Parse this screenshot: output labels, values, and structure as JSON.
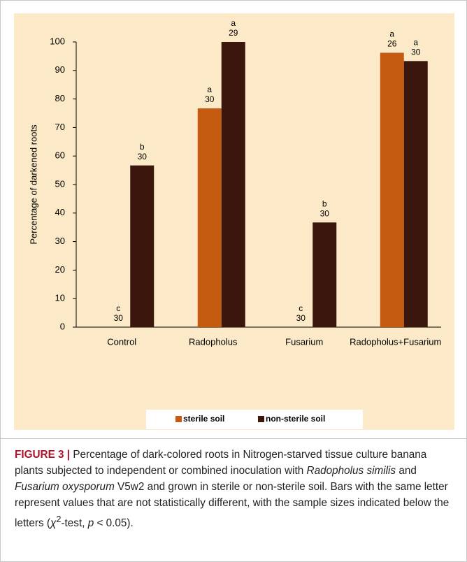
{
  "chart_data": {
    "type": "bar",
    "y_label": "Percentage of darkened roots",
    "categories": [
      "Control",
      "Radopholus",
      "Fusarium",
      "Radopholus+Fusarium"
    ],
    "series": [
      {
        "name": "sterile soil",
        "color": "#c55a11",
        "values": [
          0,
          76.7,
          0,
          96.2
        ],
        "letters": [
          "c",
          "a",
          "c",
          "a"
        ],
        "sample_sizes": [
          30,
          30,
          30,
          26
        ]
      },
      {
        "name": "non-sterile soil",
        "color": "#3a160c",
        "values": [
          56.7,
          100,
          36.7,
          93.3
        ],
        "letters": [
          "b",
          "a",
          "b",
          "a"
        ],
        "sample_sizes": [
          30,
          29,
          30,
          30
        ]
      }
    ],
    "ylim": [
      0,
      100
    ],
    "yticks": [
      0,
      10,
      20,
      30,
      40,
      50,
      60,
      70,
      80,
      90,
      100
    ],
    "background": "#fbe9c8",
    "legend": "bottom"
  },
  "caption": [
    "FIGURE 3 |",
    " Percentage of dark-colored roots in Nitrogen-starved tissue culture banana plants subjected to independent or combined inoculation with ",
    "Radopholus similis",
    " and ",
    "Fusarium oxysporum",
    " V5w2 and grown in sterile or non-sterile soil. Bars with the same letter represent values that are not statistically different, with the sample sizes indicated below the letters (",
    "χ",
    "2",
    "-test, ",
    "p",
    " < 0.05)."
  ]
}
